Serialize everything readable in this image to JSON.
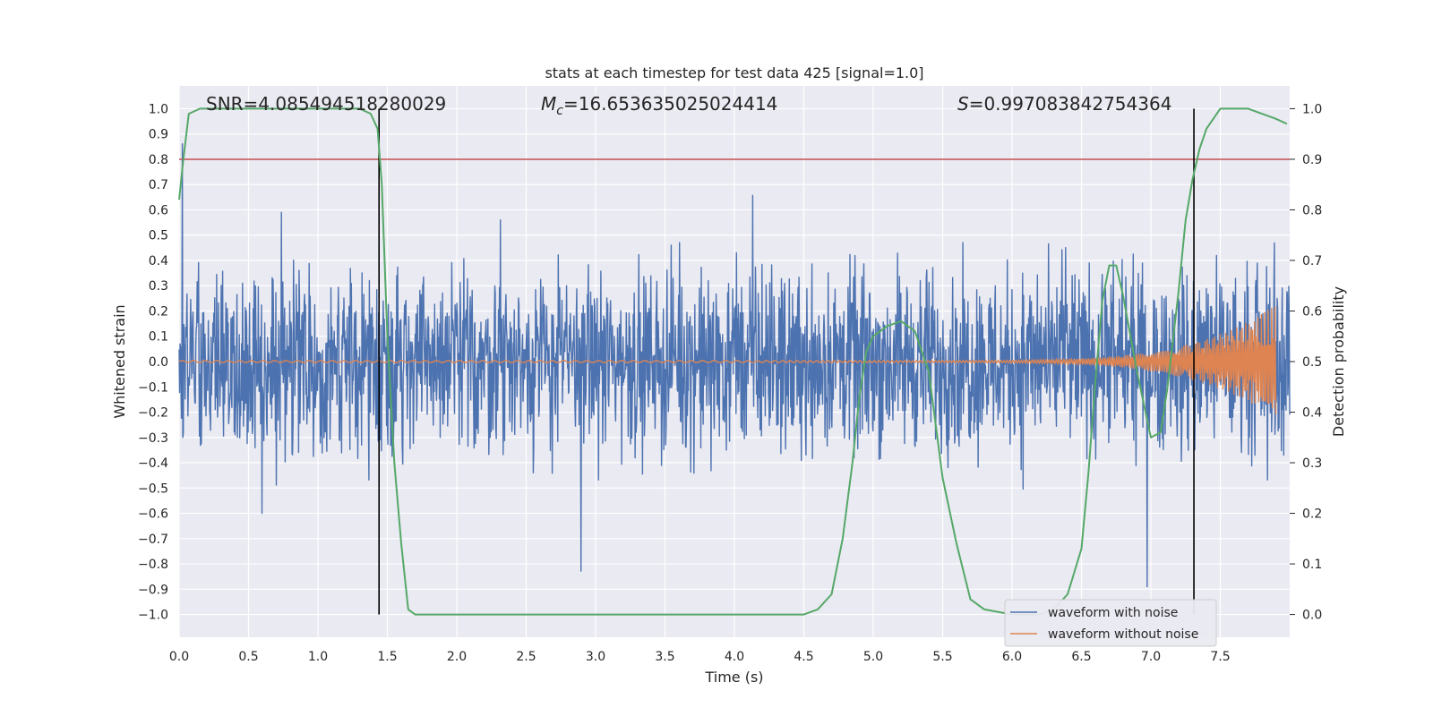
{
  "chart_data": {
    "type": "line",
    "title": "stats at each timestep for test data 425 [signal=1.0]",
    "xlabel": "Time (s)",
    "ylabel": "Whitened strain",
    "ylabel_right": "Detection probability",
    "xlim": [
      0.0,
      8.0
    ],
    "ylim": [
      -1.09,
      1.09
    ],
    "ylim_right": [
      -0.045,
      1.045
    ],
    "x_ticks": [
      0.0,
      0.5,
      1.0,
      1.5,
      2.0,
      2.5,
      3.0,
      3.5,
      4.0,
      4.5,
      5.0,
      5.5,
      6.0,
      6.5,
      7.0,
      7.5
    ],
    "x_tick_labels": [
      "0.0",
      "0.5",
      "1.0",
      "1.5",
      "2.0",
      "2.5",
      "3.0",
      "3.5",
      "4.0",
      "4.5",
      "5.0",
      "5.5",
      "6.0",
      "6.5",
      "7.0",
      "7.5"
    ],
    "y_ticks": [
      1.0,
      0.9,
      0.8,
      0.7,
      0.6,
      0.5,
      0.4,
      0.3,
      0.2,
      0.1,
      0.0,
      -0.1,
      -0.2,
      -0.3,
      -0.4,
      -0.5,
      -0.6,
      -0.7,
      -0.8,
      -0.9,
      -1.0
    ],
    "y_tick_labels": [
      "1.0",
      "0.9",
      "0.8",
      "0.7",
      "0.6",
      "0.5",
      "0.4",
      "0.3",
      "0.2",
      "0.1",
      "0.0",
      "−0.1",
      "−0.2",
      "−0.3",
      "−0.4",
      "−0.5",
      "−0.6",
      "−0.7",
      "−0.8",
      "−0.9",
      "−1.0"
    ],
    "y_right_ticks": [
      1.0,
      0.9,
      0.8,
      0.7,
      0.6,
      0.5,
      0.4,
      0.3,
      0.2,
      0.1,
      0.0
    ],
    "y_right_tick_labels": [
      "1.0",
      "0.9",
      "0.8",
      "0.7",
      "0.6",
      "0.5",
      "0.4",
      "0.3",
      "0.2",
      "0.1",
      "0.0"
    ],
    "grid": true,
    "annotations": {
      "snr": "SNR=4.085494518280029",
      "mc_symbol": "M",
      "mc_sub": "c",
      "mc_value": "=16.653635025024414",
      "s_symbol": "S",
      "s_value": "=0.997083842754364"
    },
    "threshold_line": {
      "y": 0.8,
      "color": "#c44e52"
    },
    "vertical_lines": [
      1.44,
      7.31
    ],
    "noisy_waveform": {
      "name": "waveform with noise",
      "color": "#4c72b0",
      "envelope_min": -0.99,
      "envelope_max": 1.0,
      "typical_amplitude": 0.45
    },
    "clean_waveform": {
      "name": "waveform without noise",
      "color": "#dd8452",
      "start_time": 5.0,
      "end_time": 7.9,
      "peak_amplitude": 0.22
    },
    "probability_series": {
      "name": "detection probability",
      "color": "#55a868",
      "x": [
        0.0,
        0.03,
        0.07,
        0.15,
        0.3,
        0.6,
        1.0,
        1.3,
        1.38,
        1.43,
        1.46,
        1.5,
        1.55,
        1.6,
        1.65,
        1.7,
        1.8,
        2.0,
        2.5,
        3.0,
        3.5,
        4.0,
        4.3,
        4.5,
        4.6,
        4.7,
        4.78,
        4.85,
        4.9,
        4.95,
        5.0,
        5.1,
        5.2,
        5.3,
        5.4,
        5.5,
        5.6,
        5.7,
        5.8,
        6.0,
        6.2,
        6.3,
        6.4,
        6.5,
        6.55,
        6.6,
        6.65,
        6.7,
        6.75,
        6.8,
        6.9,
        7.0,
        7.07,
        7.12,
        7.2,
        7.25,
        7.3,
        7.35,
        7.4,
        7.5,
        7.6,
        7.7,
        7.8,
        7.9,
        7.98
      ],
      "y": [
        0.82,
        0.9,
        0.99,
        1.0,
        1.0,
        1.0,
        1.0,
        1.0,
        0.99,
        0.96,
        0.85,
        0.55,
        0.3,
        0.14,
        0.01,
        0.0,
        0.0,
        0.0,
        0.0,
        0.0,
        0.0,
        0.0,
        0.0,
        0.0,
        0.01,
        0.04,
        0.15,
        0.3,
        0.43,
        0.52,
        0.55,
        0.57,
        0.58,
        0.56,
        0.48,
        0.27,
        0.14,
        0.03,
        0.01,
        0.0,
        0.0,
        0.01,
        0.04,
        0.13,
        0.28,
        0.46,
        0.62,
        0.69,
        0.69,
        0.63,
        0.48,
        0.35,
        0.36,
        0.45,
        0.64,
        0.78,
        0.86,
        0.92,
        0.96,
        1.0,
        1.0,
        1.0,
        0.99,
        0.98,
        0.97
      ]
    }
  }
}
